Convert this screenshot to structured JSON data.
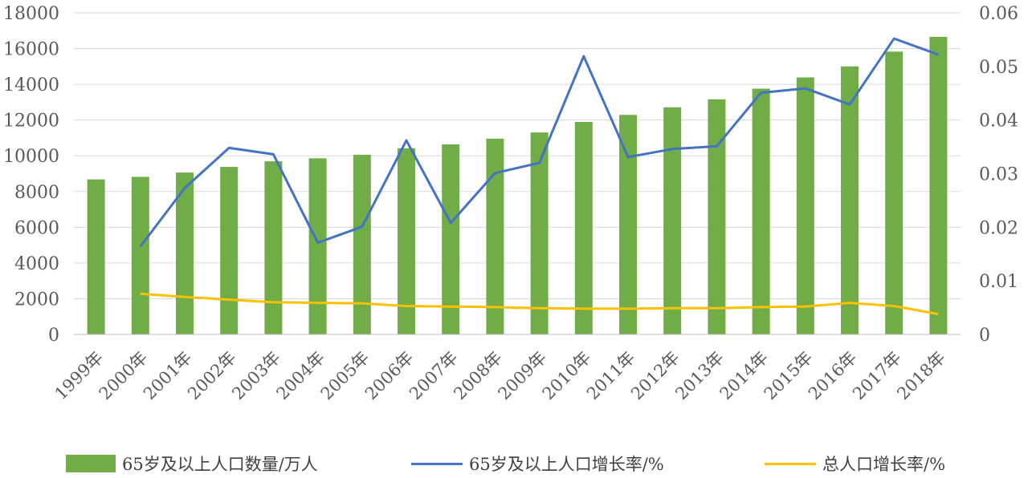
{
  "chart_data": {
    "type": "bar+line",
    "categories": [
      "1999年",
      "2000年",
      "2001年",
      "2002年",
      "2003年",
      "2004年",
      "2005年",
      "2006年",
      "2007年",
      "2008年",
      "2009年",
      "2010年",
      "2011年",
      "2012年",
      "2013年",
      "2014年",
      "2015年",
      "2016年",
      "2017年",
      "2018年"
    ],
    "series": [
      {
        "name": "65岁及以上人口数量/万人",
        "type": "bar",
        "axis": "left",
        "color": "#70ad47",
        "values": [
          8679,
          8821,
          9062,
          9377,
          9692,
          9857,
          10055,
          10419,
          10636,
          10956,
          11307,
          11894,
          12288,
          12714,
          13161,
          13755,
          14386,
          15003,
          15831,
          16658
        ]
      },
      {
        "name": "65岁及以上人口增长率/%",
        "type": "line",
        "axis": "right",
        "color": "#4472c4",
        "values": [
          null,
          0.0164,
          0.0273,
          0.0348,
          0.0336,
          0.0171,
          0.0201,
          0.0362,
          0.0208,
          0.0301,
          0.032,
          0.0519,
          0.0331,
          0.0346,
          0.0351,
          0.0451,
          0.0459,
          0.0429,
          0.0552,
          0.0522
        ]
      },
      {
        "name": "总人口增长率/%",
        "type": "line",
        "axis": "right",
        "color": "#ffc000",
        "values": [
          null,
          0.0076,
          0.007,
          0.0065,
          0.006,
          0.0059,
          0.0058,
          0.0053,
          0.0052,
          0.0051,
          0.0049,
          0.0048,
          0.0048,
          0.0049,
          0.0049,
          0.0051,
          0.0052,
          0.0059,
          0.0053,
          0.0038
        ]
      }
    ],
    "y_left": {
      "min": 0,
      "max": 18000,
      "ticks": [
        "0",
        "2000",
        "4000",
        "6000",
        "8000",
        "10000",
        "12000",
        "14000",
        "16000",
        "18000"
      ]
    },
    "y_right": {
      "min": 0,
      "max": 0.06,
      "ticks": [
        "0",
        "0.01",
        "0.02",
        "0.03",
        "0.04",
        "0.05",
        "0.06"
      ]
    },
    "grid": true,
    "legend_position": "bottom"
  }
}
